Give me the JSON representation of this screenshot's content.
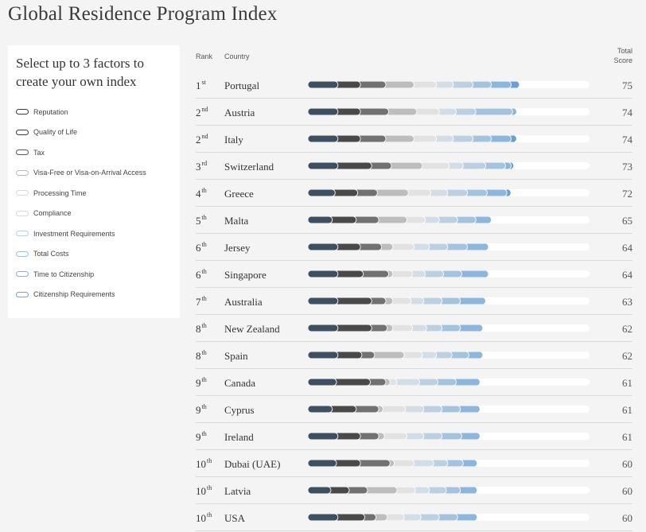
{
  "title": "Global Residence Program Index",
  "panel": {
    "heading": "Select up to 3 factors to create your own index",
    "factors": [
      {
        "label": "Reputation",
        "color": "#3a3a3a"
      },
      {
        "label": "Quality of Life",
        "color": "#3a3a3a"
      },
      {
        "label": "Tax",
        "color": "#555555"
      },
      {
        "label": "Visa-Free or Visa-on-Arrival Access",
        "color": "#b9b9b9"
      },
      {
        "label": "Processing Time",
        "color": "#d9d9d9"
      },
      {
        "label": "Compliance",
        "color": "#d2dce5"
      },
      {
        "label": "Investment Requirements",
        "color": "#bcd0e0"
      },
      {
        "label": "Total Costs",
        "color": "#9fbfd9"
      },
      {
        "label": "Time to Citizenship",
        "color": "#86b1d6"
      },
      {
        "label": "Citizenship Requirements",
        "color": "#6fa2d0"
      }
    ]
  },
  "columns": {
    "rank": "Rank",
    "country": "Country",
    "score_line1": "Total",
    "score_line2": "Score"
  },
  "chart_data": {
    "type": "bar",
    "stacked": true,
    "xlim": [
      0,
      100
    ],
    "series_colors": [
      "#3d4f60",
      "#494949",
      "#717171",
      "#bdbdbd",
      "#e2e2e2",
      "#d3dde6",
      "#bcd0e1",
      "#a3c3de",
      "#8db6dc",
      "#6aa1d4"
    ],
    "series": [
      {
        "name": "Reputation"
      },
      {
        "name": "Quality of Life"
      },
      {
        "name": "Tax"
      },
      {
        "name": "Visa-Free or Visa-on-Arrival Access"
      },
      {
        "name": "Processing Time"
      },
      {
        "name": "Compliance"
      },
      {
        "name": "Investment Requirements"
      },
      {
        "name": "Total Costs"
      },
      {
        "name": "Time to Citizenship"
      },
      {
        "name": "Citizenship Requirements"
      }
    ],
    "rows": [
      {
        "rank": "1",
        "suffix": "st",
        "country": "Portugal",
        "total": 75,
        "segments": [
          9.0,
          8.0,
          9.0,
          10.0,
          8.0,
          6.0,
          7.0,
          6.5,
          7.0,
          4.5
        ]
      },
      {
        "rank": "2",
        "suffix": "nd",
        "country": "Austria",
        "total": 74,
        "segments": [
          9.0,
          8.0,
          10.0,
          10.0,
          8.0,
          6.0,
          7.0,
          13.0,
          1.5,
          1.5
        ]
      },
      {
        "rank": "2",
        "suffix": "nd",
        "country": "Italy",
        "total": 74,
        "segments": [
          9.0,
          8.0,
          9.0,
          10.0,
          8.0,
          6.0,
          7.0,
          6.5,
          7.0,
          3.5
        ]
      },
      {
        "rank": "3",
        "suffix": "rd",
        "country": "Switzerland",
        "total": 73,
        "segments": [
          9.0,
          12.0,
          7.0,
          11.0,
          9.5,
          5.0,
          8.0,
          7.0,
          2.0,
          2.5
        ]
      },
      {
        "rank": "4",
        "suffix": "th",
        "country": "Greece",
        "total": 72,
        "segments": [
          8.0,
          8.0,
          7.0,
          11.0,
          8.0,
          6.0,
          7.0,
          7.0,
          7.0,
          3.0
        ]
      },
      {
        "rank": "5",
        "suffix": "th",
        "country": "Malta",
        "total": 65,
        "segments": [
          7.0,
          8.5,
          8.0,
          10.0,
          6.5,
          5.0,
          6.5,
          6.5,
          5.5,
          1.5
        ]
      },
      {
        "rank": "6",
        "suffix": "th",
        "country": "Jersey",
        "total": 64,
        "segments": [
          9.0,
          8.0,
          7.5,
          4.0,
          7.5,
          5.5,
          6.5,
          7.0,
          9.0,
          0.0
        ]
      },
      {
        "rank": "6",
        "suffix": "th",
        "country": "Singapore",
        "total": 64,
        "segments": [
          9.0,
          9.0,
          9.0,
          1.5,
          7.0,
          4.5,
          6.5,
          6.5,
          11.0,
          0.0
        ]
      },
      {
        "rank": "7",
        "suffix": "th",
        "country": "Australia",
        "total": 63,
        "segments": [
          9.0,
          12.0,
          5.0,
          2.5,
          6.5,
          4.5,
          6.5,
          6.5,
          10.5,
          0.0
        ]
      },
      {
        "rank": "8",
        "suffix": "th",
        "country": "New Zealand",
        "total": 62,
        "segments": [
          9.0,
          12.0,
          5.5,
          2.0,
          7.0,
          5.0,
          5.5,
          6.5,
          9.5,
          0.0
        ]
      },
      {
        "rank": "8",
        "suffix": "th",
        "country": "Spain",
        "total": 62,
        "segments": [
          9.0,
          8.5,
          4.5,
          10.5,
          6.5,
          5.0,
          5.5,
          6.0,
          6.5,
          0.0
        ]
      },
      {
        "rank": "9",
        "suffix": "th",
        "country": "Canada",
        "total": 61,
        "segments": [
          8.5,
          12.0,
          5.5,
          1.5,
          2.5,
          8.0,
          6.5,
          6.5,
          10.0,
          0.0
        ]
      },
      {
        "rank": "9",
        "suffix": "th",
        "country": "Cyprus",
        "total": 61,
        "segments": [
          7.0,
          8.5,
          8.0,
          1.5,
          8.0,
          6.5,
          6.5,
          6.5,
          8.5,
          0.0
        ]
      },
      {
        "rank": "9",
        "suffix": "th",
        "country": "Ireland",
        "total": 61,
        "segments": [
          9.0,
          8.0,
          6.5,
          2.0,
          8.0,
          6.0,
          6.5,
          7.0,
          8.0,
          0.0
        ]
      },
      {
        "rank": "10",
        "suffix": "th",
        "country": "Dubai (UAE)",
        "total": 60,
        "segments": [
          8.5,
          8.5,
          10.5,
          1.5,
          7.0,
          7.0,
          5.0,
          5.5,
          6.5,
          0.0
        ]
      },
      {
        "rank": "10",
        "suffix": "th",
        "country": "Latvia",
        "total": 60,
        "segments": [
          6.5,
          6.5,
          6.5,
          10.5,
          6.5,
          5.0,
          6.0,
          5.0,
          7.5,
          0.0
        ]
      },
      {
        "rank": "10",
        "suffix": "th",
        "country": "USA",
        "total": 60,
        "segments": [
          9.0,
          9.5,
          4.0,
          4.0,
          6.0,
          6.0,
          6.5,
          6.5,
          8.5,
          0.0
        ]
      }
    ]
  }
}
